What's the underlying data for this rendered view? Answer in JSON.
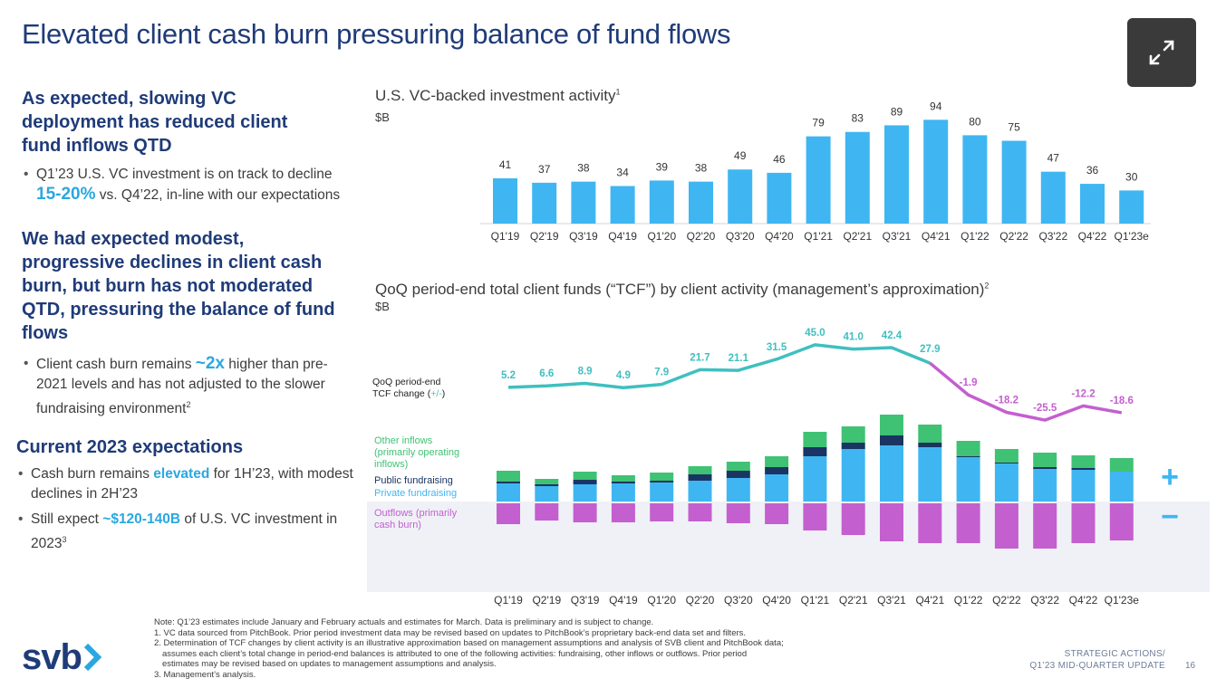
{
  "title": "Elevated client cash burn pressuring balance of fund flows",
  "left": {
    "h1": "As expected, slowing VC deployment has reduced client fund inflows QTD",
    "b1_pre": "Q1’23 U.S. VC investment is on track to decline ",
    "b1_hl": "15-20%",
    "b1_post": " vs. Q4’22, in-line with our expectations",
    "h2": "We had expected modest, progressive declines in client cash burn, but burn has not moderated QTD, pressuring the balance of fund flows",
    "b2_pre": "Client cash burn remains ",
    "b2_hl": "~2x",
    "b2_post": " higher than pre-2021 levels and has not adjusted to the slower fundraising environment",
    "b2_sup": "2",
    "h3": "Current 2023 expectations",
    "b3_pre": "Cash burn remains ",
    "b3_hl": "elevated",
    "b3_post": " for 1H’23, with modest declines in 2H’23",
    "b4_pre": "Still expect ",
    "b4_hl": "~$120-140B",
    "b4_post": " of U.S. VC investment in 2023",
    "b4_sup": "3"
  },
  "colors": {
    "title": "#1f3b78",
    "blue_bar": "#3fb6f2",
    "private": "#3fb6f2",
    "public": "#1b3563",
    "other": "#3fc274",
    "outflows": "#c45fcf",
    "line_pos": "#3fbfc0",
    "line_neg": "#c45fcf"
  },
  "chart_data": [
    {
      "type": "bar",
      "title": "U.S. VC-backed investment activity",
      "title_sup": "1",
      "unit": "$B",
      "categories": [
        "Q1'19",
        "Q2'19",
        "Q3'19",
        "Q4'19",
        "Q1'20",
        "Q2'20",
        "Q3'20",
        "Q4'20",
        "Q1'21",
        "Q2'21",
        "Q3'21",
        "Q4'21",
        "Q1'22",
        "Q2'22",
        "Q3'22",
        "Q4'22",
        "Q1'23e"
      ],
      "values": [
        41,
        37,
        38,
        34,
        39,
        38,
        49,
        46,
        79,
        83,
        89,
        94,
        80,
        75,
        47,
        36,
        30
      ],
      "ylim": [
        0,
        100
      ]
    },
    {
      "type": "bar",
      "stacked": true,
      "title": "QoQ period-end total client funds (“TCF”) by client activity (management’s approximation)",
      "title_sup": "2",
      "unit": "$B",
      "categories": [
        "Q1'19",
        "Q2'19",
        "Q3'19",
        "Q4'19",
        "Q1'20",
        "Q2'20",
        "Q3'20",
        "Q4'20",
        "Q1'21",
        "Q2'21",
        "Q3'21",
        "Q4'21",
        "Q1'22",
        "Q2'22",
        "Q3'22",
        "Q4'22",
        "Q1'23e"
      ],
      "series": [
        {
          "name": "Private fundraising",
          "values": [
            20,
            17,
            19,
            20,
            21,
            23,
            26,
            30,
            50,
            58,
            62,
            60,
            49,
            42,
            36,
            35,
            33
          ]
        },
        {
          "name": "Public fundraising",
          "values": [
            2,
            2,
            5,
            2,
            2,
            7,
            8,
            8,
            10,
            7,
            11,
            5,
            1,
            1,
            2,
            2,
            0
          ]
        },
        {
          "name": "Other inflows (primarily operating inflows)",
          "values": [
            12,
            6,
            9,
            7,
            9,
            9,
            10,
            12,
            17,
            18,
            23,
            20,
            17,
            15,
            16,
            14,
            15
          ]
        },
        {
          "name": "Outflows (primarily cash burn)",
          "values": [
            -23,
            -19,
            -21,
            -21,
            -20,
            -20,
            -22,
            -23,
            -30,
            -35,
            -42,
            -44,
            -44,
            -50,
            -50,
            -44,
            -41
          ]
        }
      ],
      "line": {
        "name": "QoQ period-end TCF change (+/-)",
        "values": [
          5.2,
          6.6,
          8.9,
          4.9,
          7.9,
          21.7,
          21.1,
          31.5,
          45.0,
          41.0,
          42.4,
          27.9,
          -1.9,
          -18.2,
          -25.5,
          -12.2,
          -18.6
        ],
        "labels": [
          "5.2",
          "6.6",
          "8.9",
          "4.9",
          "7.9",
          "21.7",
          "21.1",
          "31.5",
          "45.0",
          "41.0",
          "42.4",
          "27.9",
          "-1.9",
          "-18.2",
          "-25.5",
          "-12.2",
          "-18.6"
        ]
      },
      "legend": {
        "line_label_1": "QoQ period-end",
        "line_label_2": "TCF change (",
        "line_label_pm": "+/-",
        "line_label_3": ")",
        "other_1": "Other inflows",
        "other_2": "(primarily operating",
        "other_3": "inflows)",
        "public": "Public fundraising",
        "private": "Private fundraising",
        "outflows_1": "Outflows (primarily",
        "outflows_2": "cash burn)"
      },
      "plus_sign": "+",
      "minus_sign": "−"
    }
  ],
  "notes": [
    "Note: Q1’23 estimates include January and February actuals and estimates for March. Data is preliminary and is subject to change.",
    "1. VC data sourced from PitchBook. Prior period investment data may be revised based on updates to PitchBook’s proprietary back-end data set and filters.",
    "2. Determination of TCF changes by client activity is an illustrative approximation based on management assumptions and analysis of SVB client and PitchBook data;",
    "    assumes each client’s total change in period-end balances is attributed to one of the following activities: fundraising, other inflows or outflows. Prior period",
    "    estimates may be revised based on updates to management assumptions and analysis.",
    "3. Management’s analysis."
  ],
  "footer": {
    "line1": "STRATEGIC ACTIONS/",
    "line2": "Q1’23 MID-QUARTER UPDATE",
    "page": "16",
    "logo": "svb"
  },
  "icons": {
    "expand": "expand-icon",
    "logo_chevron": "chevron-right-icon"
  }
}
